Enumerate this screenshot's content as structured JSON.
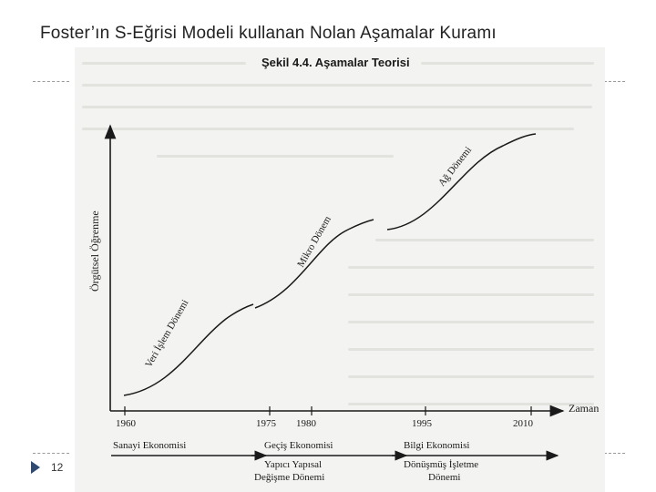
{
  "slide": {
    "title": "Foster’ın S-Eğrisi Modeli kullanan Nolan Aşamalar Kuramı",
    "page_number": "12"
  },
  "figure": {
    "title": "Şekil 4.4. Aşamalar Teorisi",
    "y_axis_label": "Örgütsel Öğrenme",
    "x_axis_label": "Zaman",
    "curves": [
      {
        "label": "Veri İşlem Dönemi"
      },
      {
        "label": "Mikro Dönem"
      },
      {
        "label": "Ağ Dönemi"
      }
    ],
    "years": [
      "1960",
      "1975",
      "1980",
      "1995",
      "2010"
    ],
    "eras": [
      {
        "label": "Sanayi Ekonomisi"
      },
      {
        "label": "Geçiş Ekonomisi"
      },
      {
        "label": "Bilgi Ekonomisi"
      }
    ],
    "transitions": [
      {
        "line1": "Yapıcı Yapısal",
        "line2": "Değişme Dönemi"
      },
      {
        "line1": "Dönüşmüş İşletme",
        "line2": "Dönemi"
      }
    ]
  }
}
